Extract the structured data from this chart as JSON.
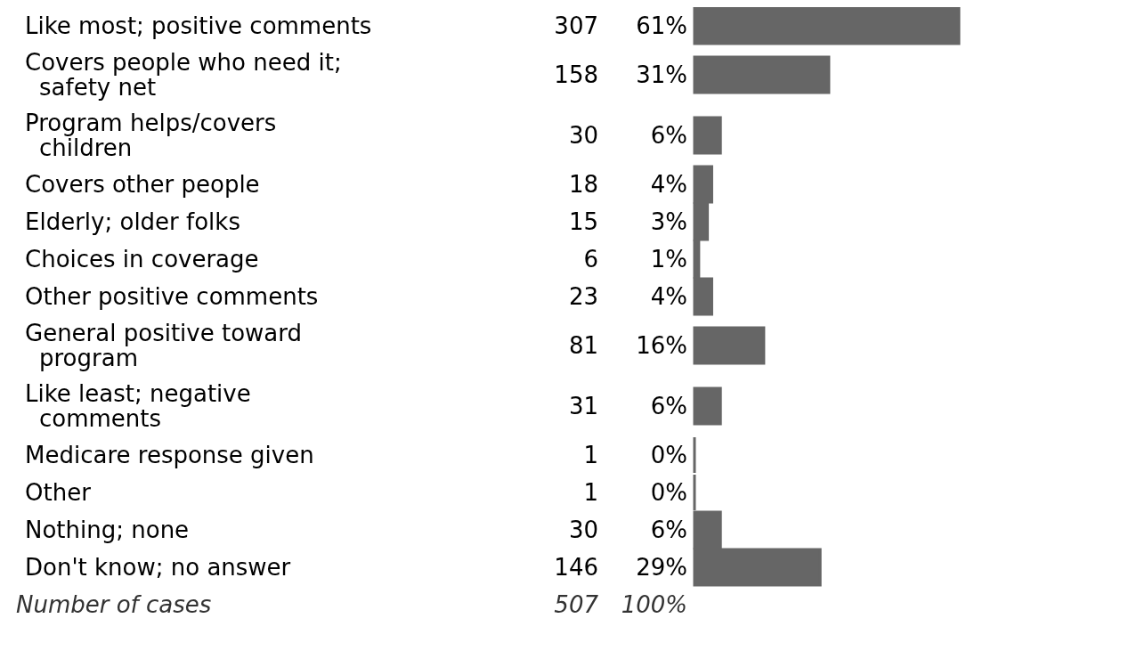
{
  "chart_data": {
    "type": "bar",
    "orientation": "horizontal",
    "categories": [
      "Like most; positive comments",
      "Covers people who need it; safety net",
      "Program helps/covers children",
      "Covers other people",
      "Elderly; older folks",
      "Choices in coverage",
      "Other positive comments",
      "General positive toward program",
      "Like least; negative comments",
      "Medicare response given",
      "Other",
      "Nothing; none",
      "Don't know; no answer"
    ],
    "series": [
      {
        "color": "#666666",
        "values": [
          61,
          31,
          6,
          4,
          3,
          1,
          4,
          16,
          6,
          0,
          0,
          6,
          29
        ],
        "value_labels": [
          "61%",
          "31%",
          "6%",
          "4%",
          "3%",
          "1%",
          "4%",
          "16%",
          "6%",
          "0%",
          "0%",
          "6%",
          "29%"
        ]
      }
    ],
    "annotations": [
      "307",
      "158",
      "30",
      "18",
      "15",
      "6",
      "23",
      "81",
      "31",
      "1",
      "1",
      "30",
      "146",
      "Number of cases",
      "507",
      "100%"
    ],
    "data_labels": false
  }
}
